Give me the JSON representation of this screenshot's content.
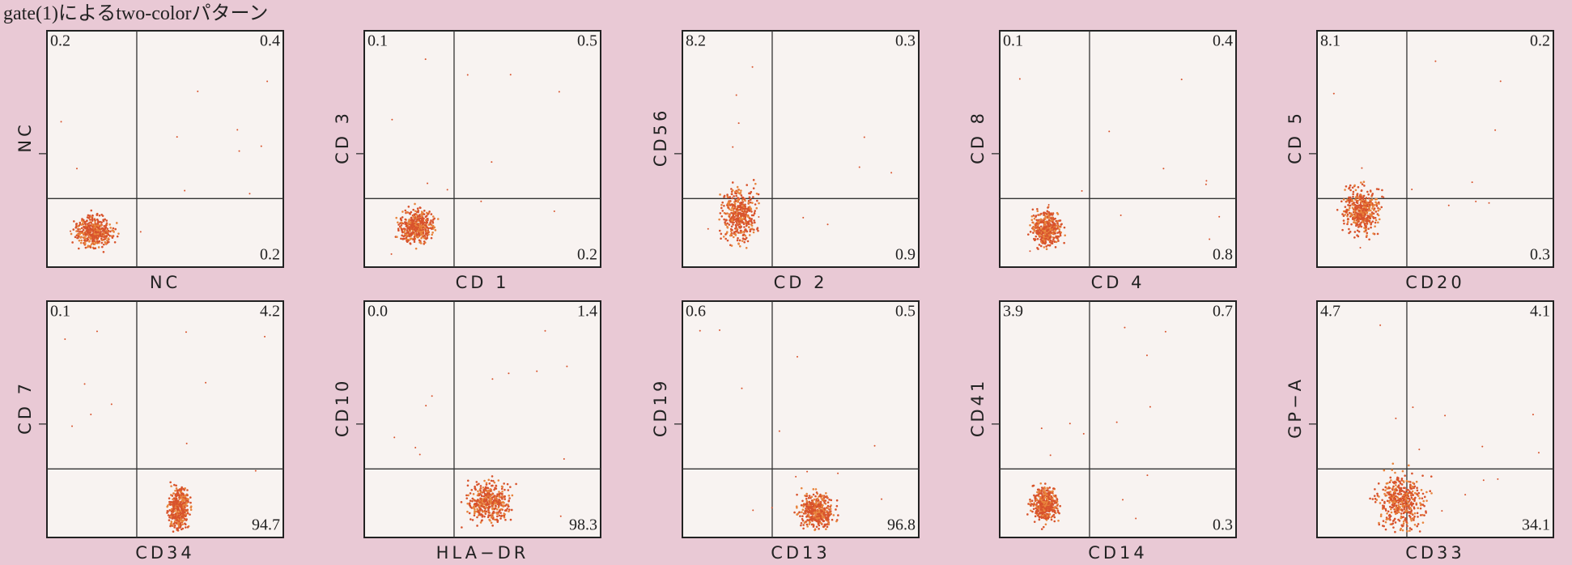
{
  "title": "gate(1)によるtwo-colorパターン",
  "panels": [
    {
      "x_label": "NC",
      "y_label": "NC",
      "upper_left": "0.2",
      "upper_right": "0.4",
      "lower_right": "0.2"
    },
    {
      "x_label": "CD 1",
      "y_label": "CD 3",
      "upper_left": "0.1",
      "upper_right": "0.5",
      "lower_right": "0.2"
    },
    {
      "x_label": "CD 2",
      "y_label": "CD56",
      "upper_left": "8.2",
      "upper_right": "0.3",
      "lower_right": "0.9"
    },
    {
      "x_label": "CD 4",
      "y_label": "CD 8",
      "upper_left": "0.1",
      "upper_right": "0.4",
      "lower_right": "0.8"
    },
    {
      "x_label": "CD20",
      "y_label": "CD 5",
      "upper_left": "8.1",
      "upper_right": "0.2",
      "lower_right": "0.3"
    },
    {
      "x_label": "CD34",
      "y_label": "CD 7",
      "upper_left": "0.1",
      "upper_right": "4.2",
      "lower_right": "94.7"
    },
    {
      "x_label": "HLA−DR",
      "y_label": "CD10",
      "upper_left": "0.0",
      "upper_right": "1.4",
      "lower_right": "98.3"
    },
    {
      "x_label": "CD13",
      "y_label": "CD19",
      "upper_left": "0.6",
      "upper_right": "0.5",
      "lower_right": "96.8"
    },
    {
      "x_label": "CD14",
      "y_label": "CD41",
      "upper_left": "3.9",
      "upper_right": "0.7",
      "lower_right": "0.3"
    },
    {
      "x_label": "CD33",
      "y_label": "GP−A",
      "upper_left": "4.7",
      "upper_right": "4.1",
      "lower_right": "34.1"
    }
  ]
}
